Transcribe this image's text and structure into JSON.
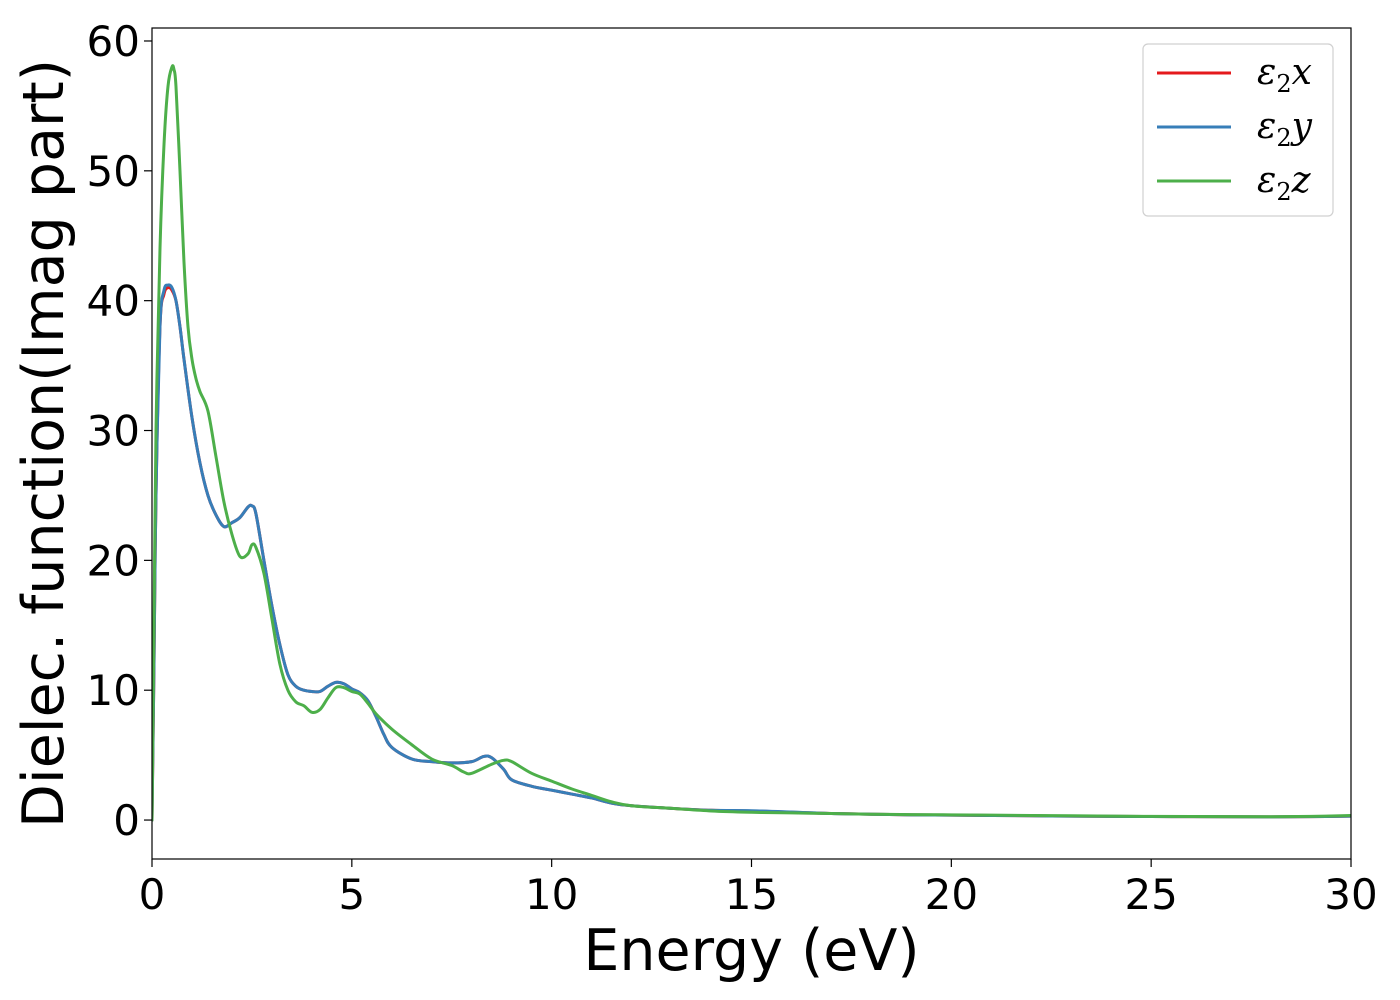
{
  "chart_data": {
    "type": "line",
    "title": "",
    "xlabel": "Energy (eV)",
    "ylabel": "Dielec. function(Imag part)",
    "xlim": [
      0,
      30
    ],
    "ylim": [
      -3,
      61
    ],
    "xticks": [
      0,
      5,
      10,
      15,
      20,
      25,
      30
    ],
    "yticks": [
      0,
      10,
      20,
      30,
      40,
      50,
      60
    ],
    "x_tick_labels": [
      "0",
      "5",
      "10",
      "15",
      "20",
      "25",
      "30"
    ],
    "y_tick_labels": [
      "0",
      "10",
      "20",
      "30",
      "40",
      "50",
      "60"
    ],
    "grid": false,
    "legend_position": "top-right",
    "series": [
      {
        "name": "ε2x",
        "legend_base": "ε",
        "legend_sub": "2",
        "legend_var": "x",
        "color": "#e41a1c",
        "x": [
          0,
          0.05,
          0.1,
          0.2,
          0.3,
          0.4,
          0.5,
          0.6,
          0.7,
          0.8,
          1.0,
          1.2,
          1.4,
          1.6,
          1.8,
          2.0,
          2.2,
          2.4,
          2.5,
          2.6,
          2.8,
          3.0,
          3.2,
          3.4,
          3.6,
          3.8,
          4.0,
          4.2,
          4.4,
          4.6,
          4.8,
          5.0,
          5.2,
          5.4,
          5.6,
          5.8,
          6.0,
          6.5,
          7.0,
          7.5,
          8.0,
          8.3,
          8.5,
          8.8,
          9.0,
          9.5,
          10.0,
          10.5,
          11.0,
          11.5,
          12.0,
          13.0,
          14.0,
          15.0,
          16.0,
          17.0,
          18.0,
          19.0,
          20.0,
          21.0,
          22.0,
          23.0,
          24.0,
          25.0,
          26.0,
          27.0,
          28.0,
          29.0,
          30.0
        ],
        "y": [
          0,
          12,
          25,
          38,
          40.5,
          41.0,
          40.8,
          40.0,
          38.0,
          35.5,
          31.0,
          27.5,
          25.0,
          23.5,
          22.6,
          22.9,
          23.3,
          24.1,
          24.2,
          23.6,
          20.0,
          16.5,
          13.5,
          11.2,
          10.3,
          10.0,
          9.9,
          9.9,
          10.3,
          10.6,
          10.5,
          10.1,
          9.8,
          9.2,
          8.0,
          6.6,
          5.6,
          4.7,
          4.5,
          4.4,
          4.5,
          4.9,
          4.8,
          3.9,
          3.1,
          2.6,
          2.3,
          2.0,
          1.7,
          1.3,
          1.1,
          0.9,
          0.75,
          0.7,
          0.6,
          0.5,
          0.45,
          0.4,
          0.38,
          0.35,
          0.33,
          0.3,
          0.28,
          0.27,
          0.26,
          0.25,
          0.24,
          0.26,
          0.3
        ]
      },
      {
        "name": "ε2y",
        "legend_base": "ε",
        "legend_sub": "2",
        "legend_var": "y",
        "color": "#377eb8",
        "x": [
          0,
          0.05,
          0.1,
          0.2,
          0.3,
          0.4,
          0.5,
          0.6,
          0.7,
          0.8,
          1.0,
          1.2,
          1.4,
          1.6,
          1.8,
          2.0,
          2.2,
          2.4,
          2.5,
          2.6,
          2.8,
          3.0,
          3.2,
          3.4,
          3.6,
          3.8,
          4.0,
          4.2,
          4.4,
          4.6,
          4.8,
          5.0,
          5.2,
          5.4,
          5.6,
          5.8,
          6.0,
          6.5,
          7.0,
          7.5,
          8.0,
          8.3,
          8.5,
          8.8,
          9.0,
          9.5,
          10.0,
          10.5,
          11.0,
          11.5,
          12.0,
          13.0,
          14.0,
          15.0,
          16.0,
          17.0,
          18.0,
          19.0,
          20.0,
          21.0,
          22.0,
          23.0,
          24.0,
          25.0,
          26.0,
          27.0,
          28.0,
          29.0,
          30.0
        ],
        "y": [
          0,
          12,
          25,
          38,
          40.8,
          41.2,
          41.0,
          40.0,
          38.0,
          35.5,
          31.0,
          27.5,
          25.0,
          23.5,
          22.6,
          22.9,
          23.3,
          24.1,
          24.2,
          23.6,
          20.0,
          16.5,
          13.5,
          11.2,
          10.3,
          10.0,
          9.9,
          9.9,
          10.3,
          10.6,
          10.5,
          10.1,
          9.8,
          9.2,
          8.0,
          6.6,
          5.6,
          4.7,
          4.5,
          4.4,
          4.5,
          4.9,
          4.8,
          3.9,
          3.1,
          2.6,
          2.3,
          2.0,
          1.7,
          1.3,
          1.1,
          0.9,
          0.75,
          0.72,
          0.62,
          0.5,
          0.45,
          0.4,
          0.38,
          0.35,
          0.33,
          0.3,
          0.28,
          0.27,
          0.26,
          0.25,
          0.24,
          0.26,
          0.3
        ]
      },
      {
        "name": "ε2z",
        "legend_base": "ε",
        "legend_sub": "2",
        "legend_var": "z",
        "color": "#4daf4a",
        "x": [
          0,
          0.05,
          0.1,
          0.2,
          0.3,
          0.4,
          0.5,
          0.55,
          0.6,
          0.7,
          0.8,
          0.9,
          1.0,
          1.1,
          1.2,
          1.4,
          1.6,
          1.8,
          2.0,
          2.2,
          2.4,
          2.5,
          2.6,
          2.8,
          3.0,
          3.2,
          3.4,
          3.6,
          3.8,
          4.0,
          4.2,
          4.4,
          4.6,
          4.8,
          5.0,
          5.2,
          5.4,
          5.6,
          6.0,
          6.5,
          7.0,
          7.5,
          7.8,
          8.0,
          8.5,
          8.8,
          9.0,
          9.5,
          10.0,
          10.5,
          11.0,
          11.5,
          12.0,
          13.0,
          14.0,
          15.0,
          16.0,
          17.0,
          18.0,
          19.0,
          20.0,
          21.0,
          22.0,
          23.0,
          24.0,
          25.0,
          26.0,
          27.0,
          28.0,
          29.0,
          30.0
        ],
        "y": [
          0,
          15,
          30,
          44,
          52,
          56.5,
          58.0,
          57.8,
          56.5,
          50.0,
          43.0,
          38.0,
          35.5,
          34.0,
          33.0,
          31.5,
          28.0,
          24.5,
          22.0,
          20.3,
          20.5,
          21.2,
          21.0,
          19.0,
          15.5,
          12.0,
          10.0,
          9.1,
          8.8,
          8.3,
          8.5,
          9.4,
          10.2,
          10.2,
          9.9,
          9.7,
          9.0,
          8.2,
          7.0,
          5.8,
          4.7,
          4.2,
          3.7,
          3.6,
          4.3,
          4.6,
          4.5,
          3.6,
          3.0,
          2.4,
          1.9,
          1.4,
          1.1,
          0.9,
          0.7,
          0.6,
          0.55,
          0.5,
          0.45,
          0.42,
          0.4,
          0.38,
          0.35,
          0.33,
          0.3,
          0.28,
          0.27,
          0.26,
          0.25,
          0.28,
          0.35
        ]
      }
    ]
  }
}
